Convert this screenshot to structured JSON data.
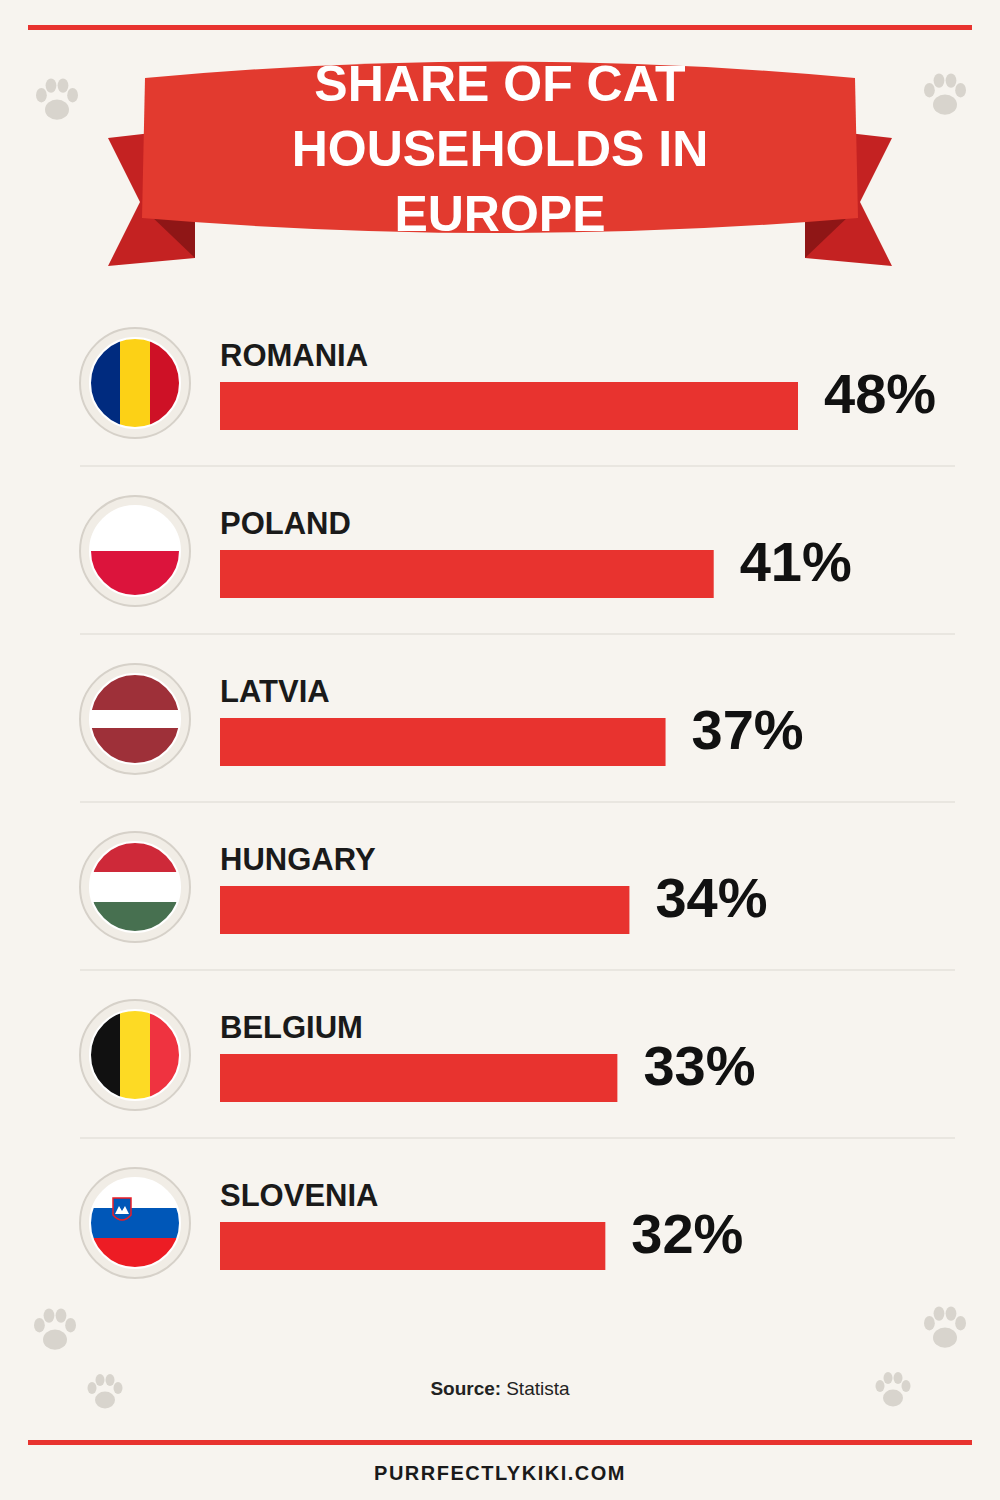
{
  "chart_data": {
    "type": "bar",
    "title": "SHARE OF CAT HOUSEHOLDS IN EUROPE",
    "orientation": "horizontal",
    "categories": [
      "ROMANIA",
      "POLAND",
      "LATVIA",
      "HUNGARY",
      "BELGIUM",
      "SLOVENIA"
    ],
    "values": [
      48,
      41,
      37,
      34,
      33,
      32
    ],
    "value_labels": [
      "48%",
      "41%",
      "37%",
      "34%",
      "33%",
      "32%"
    ],
    "color": "#e8332f",
    "xlim": [
      0,
      48
    ],
    "data_labels": true,
    "tick_labels": "y",
    "grid": false
  },
  "source": {
    "label": "Source:",
    "name": "Statista"
  },
  "footer": "PURRFECTLYKIKI.COM"
}
